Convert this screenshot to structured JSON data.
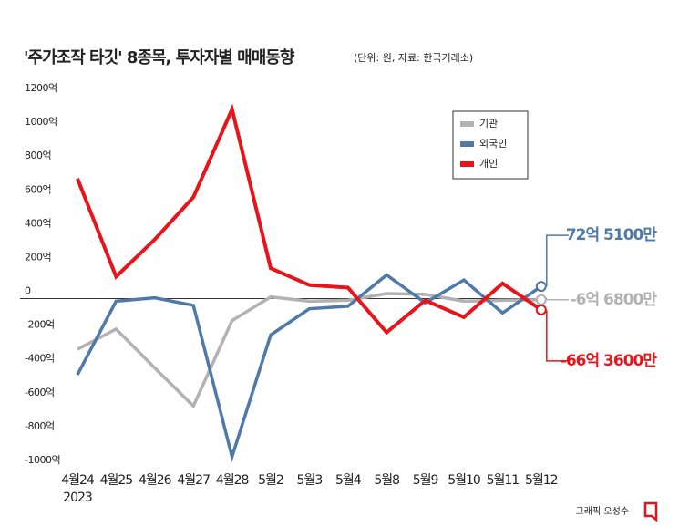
{
  "chart_data": {
    "type": "line",
    "title": "'주가조작 타깃' 8종목, 투자자별 매매동향",
    "subtitle": "(단위: 원, 자료: 한국거래소)",
    "categories": [
      "4월24",
      "4월25",
      "4월26",
      "4월27",
      "4월28",
      "5월2",
      "5월3",
      "5월4",
      "5월8",
      "5월9",
      "5월10",
      "5월11",
      "5월12"
    ],
    "year_label": "2023",
    "series": [
      {
        "name": "기관",
        "color": "#b2b2b2",
        "values": [
          -300,
          -180,
          -410,
          -635,
          -130,
          10,
          -15,
          -10,
          30,
          25,
          -15,
          -10,
          -6.68
        ],
        "value_labels": [
          null,
          null,
          null,
          null,
          null,
          null,
          null,
          null,
          null,
          null,
          null,
          null,
          "-6억 6800만"
        ]
      },
      {
        "name": "외국인",
        "color": "#4f79a8",
        "values": [
          -450,
          -15,
          5,
          -40,
          -935,
          -215,
          -60,
          -45,
          140,
          -25,
          110,
          -85,
          72.51
        ],
        "value_labels": [
          null,
          null,
          null,
          null,
          null,
          null,
          null,
          null,
          null,
          null,
          null,
          null,
          "72억 5100만"
        ]
      },
      {
        "name": "개인",
        "color": "#e8141a",
        "values": [
          710,
          130,
          350,
          600,
          1120,
          180,
          80,
          65,
          -200,
          -10,
          -110,
          90,
          -66.36
        ],
        "value_labels": [
          null,
          null,
          null,
          null,
          null,
          null,
          null,
          null,
          null,
          null,
          null,
          null,
          "-66억 3600만"
        ]
      }
    ],
    "ylim": [
      -1000,
      1200
    ],
    "yticks": [
      {
        "value": 1200,
        "label": "1200억"
      },
      {
        "value": 1000,
        "label": "1000억"
      },
      {
        "value": 800,
        "label": "800억"
      },
      {
        "value": 600,
        "label": "600억"
      },
      {
        "value": 400,
        "label": "400억"
      },
      {
        "value": 200,
        "label": "200억"
      },
      0,
      {
        "value": -200,
        "label": "-200억"
      },
      {
        "value": -400,
        "label": "-400억"
      },
      {
        "value": -600,
        "label": "-600억"
      },
      {
        "value": -800,
        "label": "-800억"
      },
      {
        "value": -1000,
        "label": "-1000억"
      }
    ],
    "zero_line": true,
    "legend": "upper right",
    "credit": "그래픽 오성수"
  }
}
